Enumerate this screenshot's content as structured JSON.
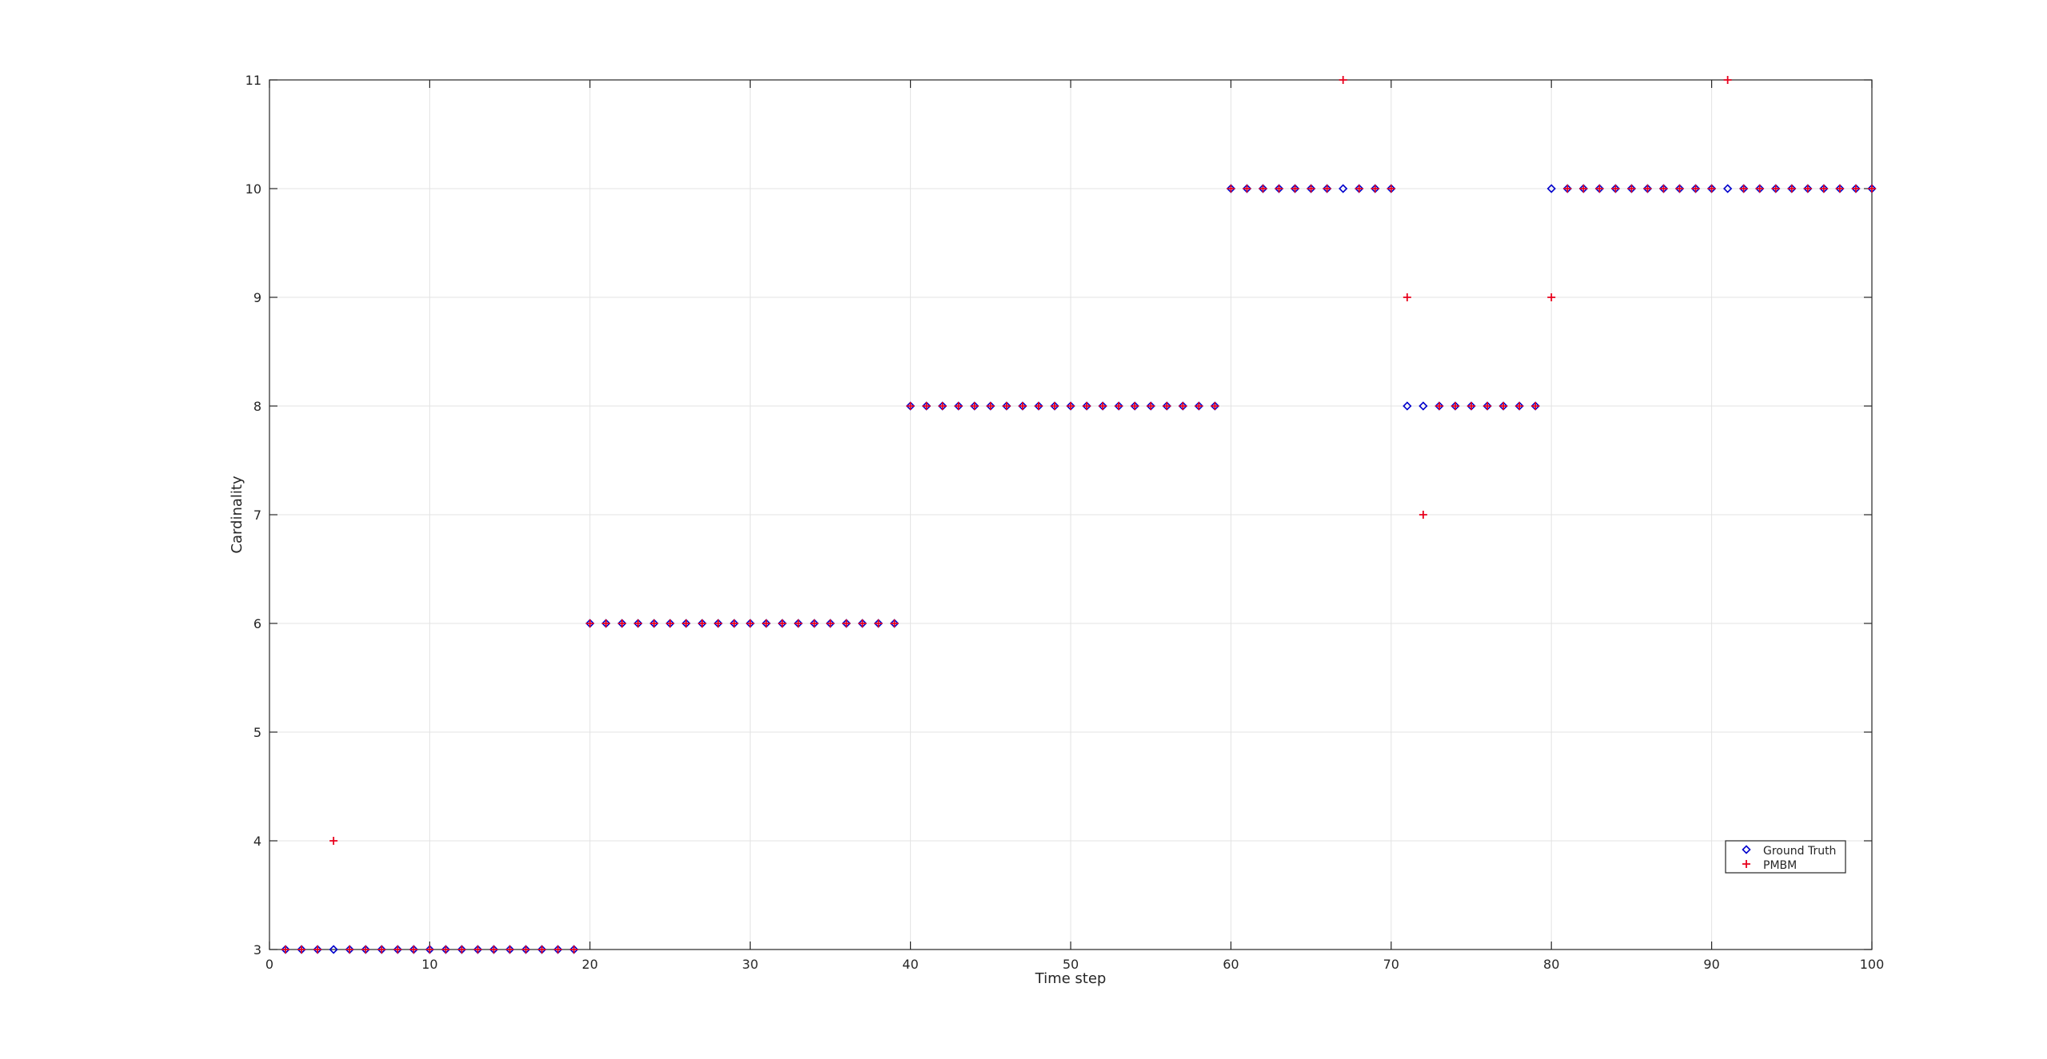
{
  "chart_data": {
    "type": "scatter",
    "title": "",
    "xlabel": "Time step",
    "ylabel": "Cardinality",
    "xlim": [
      0,
      100
    ],
    "ylim": [
      3,
      11
    ],
    "xticks": [
      0,
      10,
      20,
      30,
      40,
      50,
      60,
      70,
      80,
      90,
      100
    ],
    "yticks": [
      3,
      4,
      5,
      6,
      7,
      8,
      9,
      10,
      11
    ],
    "grid": true,
    "legend_position": "bottom-right",
    "x": [
      1,
      2,
      3,
      4,
      5,
      6,
      7,
      8,
      9,
      10,
      11,
      12,
      13,
      14,
      15,
      16,
      17,
      18,
      19,
      20,
      21,
      22,
      23,
      24,
      25,
      26,
      27,
      28,
      29,
      30,
      31,
      32,
      33,
      34,
      35,
      36,
      37,
      38,
      39,
      40,
      41,
      42,
      43,
      44,
      45,
      46,
      47,
      48,
      49,
      50,
      51,
      52,
      53,
      54,
      55,
      56,
      57,
      58,
      59,
      60,
      61,
      62,
      63,
      64,
      65,
      66,
      67,
      68,
      69,
      70,
      71,
      72,
      73,
      74,
      75,
      76,
      77,
      78,
      79,
      80,
      81,
      82,
      83,
      84,
      85,
      86,
      87,
      88,
      89,
      90,
      91,
      92,
      93,
      94,
      95,
      96,
      97,
      98,
      99,
      100
    ],
    "series": [
      {
        "name": "Ground Truth",
        "marker": "diamond",
        "color": "#0000cc",
        "values": [
          3,
          3,
          3,
          3,
          3,
          3,
          3,
          3,
          3,
          3,
          3,
          3,
          3,
          3,
          3,
          3,
          3,
          3,
          3,
          6,
          6,
          6,
          6,
          6,
          6,
          6,
          6,
          6,
          6,
          6,
          6,
          6,
          6,
          6,
          6,
          6,
          6,
          6,
          6,
          8,
          8,
          8,
          8,
          8,
          8,
          8,
          8,
          8,
          8,
          8,
          8,
          8,
          8,
          8,
          8,
          8,
          8,
          8,
          8,
          10,
          10,
          10,
          10,
          10,
          10,
          10,
          10,
          10,
          10,
          10,
          8,
          8,
          8,
          8,
          8,
          8,
          8,
          8,
          8,
          10,
          10,
          10,
          10,
          10,
          10,
          10,
          10,
          10,
          10,
          10,
          10,
          10,
          10,
          10,
          10,
          10,
          10,
          10,
          10,
          10
        ]
      },
      {
        "name": "PMBM",
        "marker": "plus",
        "color": "#e8001c",
        "values": [
          3,
          3,
          3,
          4,
          3,
          3,
          3,
          3,
          3,
          3,
          3,
          3,
          3,
          3,
          3,
          3,
          3,
          3,
          3,
          6,
          6,
          6,
          6,
          6,
          6,
          6,
          6,
          6,
          6,
          6,
          6,
          6,
          6,
          6,
          6,
          6,
          6,
          6,
          6,
          8,
          8,
          8,
          8,
          8,
          8,
          8,
          8,
          8,
          8,
          8,
          8,
          8,
          8,
          8,
          8,
          8,
          8,
          8,
          8,
          10,
          10,
          10,
          10,
          10,
          10,
          10,
          11,
          10,
          10,
          10,
          9,
          7,
          8,
          8,
          8,
          8,
          8,
          8,
          8,
          9,
          10,
          10,
          10,
          10,
          10,
          10,
          10,
          10,
          10,
          10,
          11,
          10,
          10,
          10,
          10,
          10,
          10,
          10,
          10,
          10
        ]
      }
    ]
  }
}
